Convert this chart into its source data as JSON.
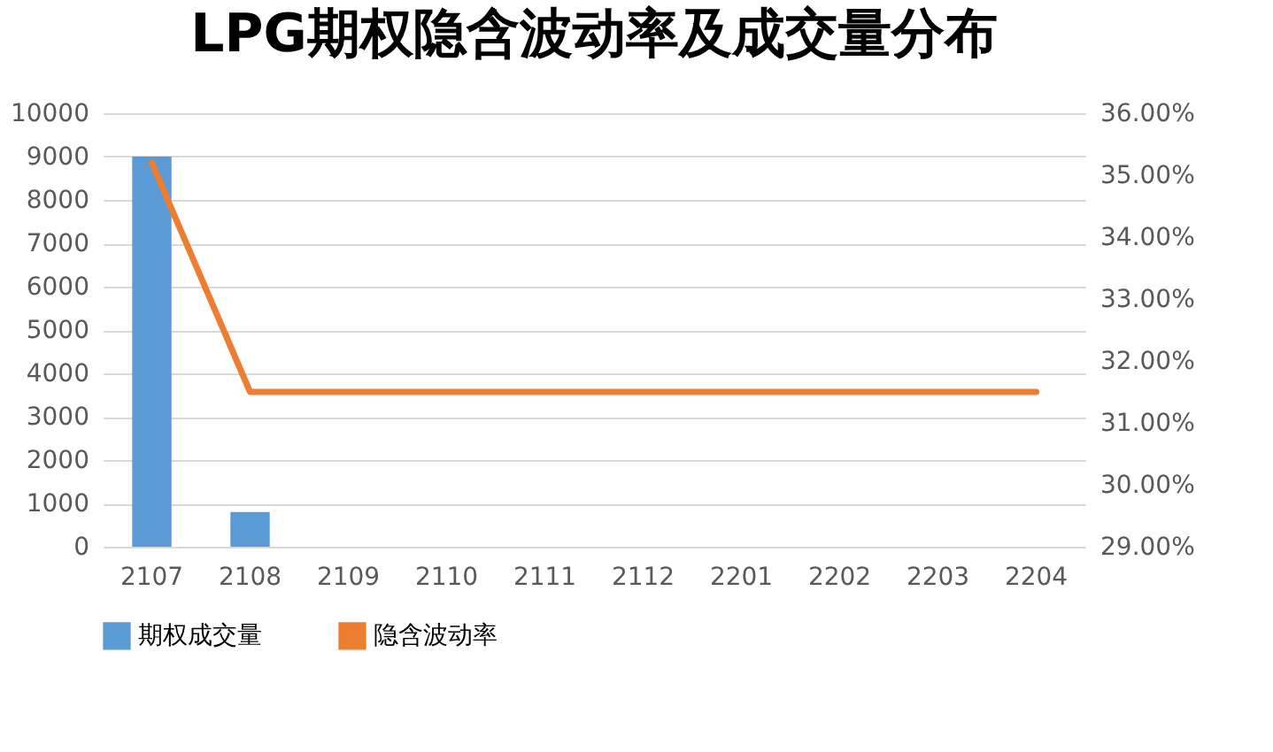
{
  "chart_data": {
    "type": "bar",
    "title": "LPG期权隐含波动率及成交量分布",
    "categories": [
      "2107",
      "2108",
      "2109",
      "2110",
      "2111",
      "2112",
      "2201",
      "2202",
      "2203",
      "2204"
    ],
    "series": [
      {
        "name": "期权成交量",
        "color": "#5b9bd5",
        "values": [
          9000,
          800,
          0,
          0,
          0,
          0,
          0,
          0,
          0,
          0
        ]
      },
      {
        "name": "隐含波动率",
        "type": "line",
        "axis": "y2",
        "color": "#ed7d31",
        "values": [
          35.2,
          31.5,
          31.5,
          31.5,
          31.5,
          31.5,
          31.5,
          31.5,
          31.5,
          31.5
        ]
      }
    ],
    "ylim": [
      0,
      10000
    ],
    "yticks": [
      0,
      1000,
      2000,
      3000,
      4000,
      5000,
      6000,
      7000,
      8000,
      9000,
      10000
    ],
    "y2lim": [
      29,
      36
    ],
    "y2ticks": [
      {
        "value": 29,
        "label": "29.00%"
      },
      {
        "value": 30,
        "label": "30.00%"
      },
      {
        "value": 31,
        "label": "31.00%"
      },
      {
        "value": 32,
        "label": "32.00%"
      },
      {
        "value": 33,
        "label": "33.00%"
      },
      {
        "value": 34,
        "label": "34.00%"
      },
      {
        "value": 35,
        "label": "35.00%"
      },
      {
        "value": 36,
        "label": "36.00%"
      }
    ],
    "grid": "y",
    "legend": "bottom",
    "marker": "none",
    "line_style": "solid"
  }
}
